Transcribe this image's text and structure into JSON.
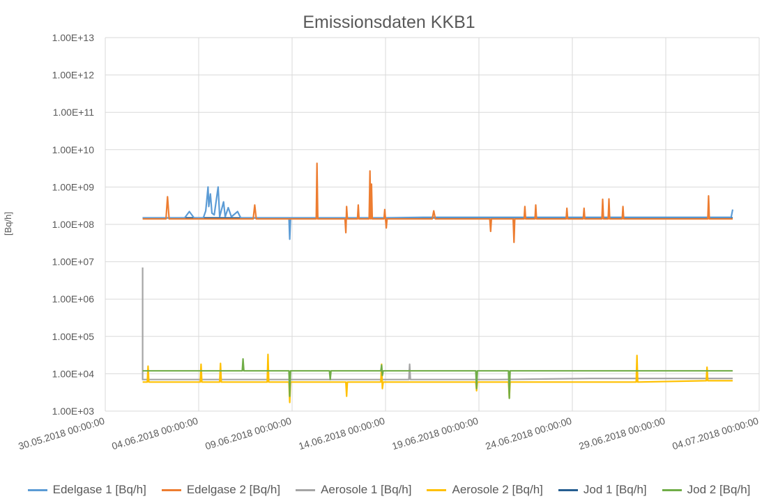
{
  "chart_data": {
    "type": "line",
    "title": "Emissionsdaten KKB1",
    "xlabel": "",
    "ylabel": "[Bq/h]",
    "y_scale": "log",
    "ylim": [
      1000,
      10000000000000
    ],
    "y_ticks": [
      1000,
      10000,
      100000,
      1000000,
      10000000,
      100000000,
      1000000000,
      10000000000,
      100000000000,
      1000000000000,
      10000000000000
    ],
    "y_tick_labels": [
      "1.00E+03",
      "1.00E+04",
      "1.00E+05",
      "1.00E+06",
      "1.00E+07",
      "1.00E+08",
      "1.00E+09",
      "1.00E+10",
      "1.00E+11",
      "1.00E+12",
      "1.00E+13"
    ],
    "xlim": [
      "2018-05-30 00:00",
      "2018-07-04 00:00"
    ],
    "x_ticks": [
      "2018-05-30 00:00",
      "2018-06-04 00:00",
      "2018-06-09 00:00",
      "2018-06-14 00:00",
      "2018-06-19 00:00",
      "2018-06-24 00:00",
      "2018-06-29 00:00",
      "2018-07-04 00:00"
    ],
    "x_tick_labels": [
      "30.05.2018 00:00:00",
      "04.06.2018 00:00:00",
      "09.06.2018 00:00:00",
      "14.06.2018 00:00:00",
      "19.06.2018 00:00:00",
      "24.06.2018 00:00:00",
      "29.06.2018 00:00:00",
      "04.07.2018 00:00:00"
    ],
    "grid": true,
    "legend_position": "bottom",
    "series": [
      {
        "name": "Edelgase 1 [Bq/h]",
        "color": "#5B9BD5",
        "points": [
          [
            "2018-06-01 00:00",
            150000000
          ],
          [
            "2018-06-02 00:00",
            150000000
          ],
          [
            "2018-06-03 06:00",
            150000000
          ],
          [
            "2018-06-03 12:00",
            220000000
          ],
          [
            "2018-06-03 18:00",
            150000000
          ],
          [
            "2018-06-04 06:00",
            150000000
          ],
          [
            "2018-06-04 09:00",
            230000000
          ],
          [
            "2018-06-04 11:00",
            600000000
          ],
          [
            "2018-06-04 12:00",
            1000000000
          ],
          [
            "2018-06-04 13:00",
            300000000
          ],
          [
            "2018-06-04 15:00",
            650000000
          ],
          [
            "2018-06-04 17:00",
            200000000
          ],
          [
            "2018-06-04 20:00",
            180000000
          ],
          [
            "2018-06-05 01:00",
            1000000000
          ],
          [
            "2018-06-05 03:00",
            160000000
          ],
          [
            "2018-06-05 08:00",
            400000000
          ],
          [
            "2018-06-05 10:00",
            160000000
          ],
          [
            "2018-06-05 14:00",
            280000000
          ],
          [
            "2018-06-05 18:00",
            160000000
          ],
          [
            "2018-06-06 02:00",
            220000000
          ],
          [
            "2018-06-06 06:00",
            150000000
          ],
          [
            "2018-06-07 00:00",
            150000000
          ],
          [
            "2018-06-08 00:00",
            150000000
          ],
          [
            "2018-06-08 20:00",
            150000000
          ],
          [
            "2018-06-08 21:00",
            40000000
          ],
          [
            "2018-06-08 22:00",
            150000000
          ],
          [
            "2018-06-10 00:00",
            150000000
          ],
          [
            "2018-06-11 00:00",
            150000000
          ],
          [
            "2018-06-12 00:00",
            150000000
          ],
          [
            "2018-06-14 00:00",
            150000000
          ],
          [
            "2018-06-16 00:00",
            155000000
          ],
          [
            "2018-06-18 00:00",
            155000000
          ],
          [
            "2018-06-20 00:00",
            155000000
          ],
          [
            "2018-06-22 00:00",
            155000000
          ],
          [
            "2018-06-24 00:00",
            155000000
          ],
          [
            "2018-06-26 00:00",
            155000000
          ],
          [
            "2018-06-28 00:00",
            155000000
          ],
          [
            "2018-06-30 00:00",
            155000000
          ],
          [
            "2018-07-02 00:00",
            155000000
          ],
          [
            "2018-07-02 12:00",
            155000000
          ],
          [
            "2018-07-02 14:00",
            250000000
          ]
        ]
      },
      {
        "name": "Edelgase 2 [Bq/h]",
        "color": "#ED7D31",
        "points": [
          [
            "2018-06-01 00:00",
            140000000
          ],
          [
            "2018-06-02 06:00",
            140000000
          ],
          [
            "2018-06-02 08:00",
            550000000
          ],
          [
            "2018-06-02 10:00",
            140000000
          ],
          [
            "2018-06-05 00:00",
            140000000
          ],
          [
            "2018-06-06 22:00",
            140000000
          ],
          [
            "2018-06-07 00:00",
            330000000
          ],
          [
            "2018-06-07 02:00",
            140000000
          ],
          [
            "2018-06-10 07:00",
            140000000
          ],
          [
            "2018-06-10 08:00",
            4300000000
          ],
          [
            "2018-06-10 09:00",
            140000000
          ],
          [
            "2018-06-11 20:00",
            140000000
          ],
          [
            "2018-06-11 21:00",
            60000000
          ],
          [
            "2018-06-11 22:00",
            300000000
          ],
          [
            "2018-06-11 23:00",
            140000000
          ],
          [
            "2018-06-12 12:00",
            140000000
          ],
          [
            "2018-06-12 13:00",
            330000000
          ],
          [
            "2018-06-12 14:00",
            140000000
          ],
          [
            "2018-06-13 03:00",
            140000000
          ],
          [
            "2018-06-13 04:00",
            2700000000
          ],
          [
            "2018-06-13 05:00",
            140000000
          ],
          [
            "2018-06-13 06:00",
            1200000000
          ],
          [
            "2018-06-13 07:00",
            140000000
          ],
          [
            "2018-06-13 22:00",
            140000000
          ],
          [
            "2018-06-13 23:00",
            250000000
          ],
          [
            "2018-06-14 01:00",
            80000000
          ],
          [
            "2018-06-14 02:00",
            140000000
          ],
          [
            "2018-06-16 12:00",
            140000000
          ],
          [
            "2018-06-16 14:00",
            230000000
          ],
          [
            "2018-06-16 16:00",
            140000000
          ],
          [
            "2018-06-19 14:00",
            140000000
          ],
          [
            "2018-06-19 15:00",
            65000000
          ],
          [
            "2018-06-19 16:00",
            140000000
          ],
          [
            "2018-06-20 20:00",
            140000000
          ],
          [
            "2018-06-20 21:00",
            33000000
          ],
          [
            "2018-06-20 22:00",
            140000000
          ],
          [
            "2018-06-21 10:00",
            140000000
          ],
          [
            "2018-06-21 11:00",
            300000000
          ],
          [
            "2018-06-21 12:00",
            140000000
          ],
          [
            "2018-06-22 00:00",
            140000000
          ],
          [
            "2018-06-22 01:00",
            330000000
          ],
          [
            "2018-06-22 02:00",
            140000000
          ],
          [
            "2018-06-23 16:00",
            140000000
          ],
          [
            "2018-06-23 17:00",
            270000000
          ],
          [
            "2018-06-23 18:00",
            140000000
          ],
          [
            "2018-06-24 14:00",
            140000000
          ],
          [
            "2018-06-24 15:00",
            270000000
          ],
          [
            "2018-06-24 16:00",
            140000000
          ],
          [
            "2018-06-25 14:00",
            140000000
          ],
          [
            "2018-06-25 15:00",
            470000000
          ],
          [
            "2018-06-25 16:00",
            140000000
          ],
          [
            "2018-06-25 22:00",
            140000000
          ],
          [
            "2018-06-25 23:00",
            480000000
          ],
          [
            "2018-06-26 00:00",
            140000000
          ],
          [
            "2018-06-26 16:00",
            140000000
          ],
          [
            "2018-06-26 17:00",
            300000000
          ],
          [
            "2018-06-26 18:00",
            140000000
          ],
          [
            "2018-07-01 06:00",
            140000000
          ],
          [
            "2018-07-01 07:00",
            580000000
          ],
          [
            "2018-07-01 08:00",
            140000000
          ],
          [
            "2018-07-02 14:00",
            140000000
          ]
        ]
      },
      {
        "name": "Aerosole 1 [Bq/h]",
        "color": "#A5A5A5",
        "points": [
          [
            "2018-06-01 00:00",
            7000000
          ],
          [
            "2018-06-01 00:00",
            7000
          ],
          [
            "2018-06-04 00:00",
            7000
          ],
          [
            "2018-06-09 00:00",
            7000
          ],
          [
            "2018-06-15 06:00",
            7000
          ],
          [
            "2018-06-15 07:00",
            18000
          ],
          [
            "2018-06-15 08:00",
            7000
          ],
          [
            "2018-06-20 00:00",
            7000
          ],
          [
            "2018-06-25 00:00",
            7500
          ],
          [
            "2018-06-30 00:00",
            7500
          ],
          [
            "2018-07-02 14:00",
            7500
          ]
        ]
      },
      {
        "name": "Aerosole 2 [Bq/h]",
        "color": "#FFC000",
        "points": [
          [
            "2018-06-01 00:00",
            6000
          ],
          [
            "2018-06-01 06:00",
            6000
          ],
          [
            "2018-06-01 07:00",
            16000
          ],
          [
            "2018-06-01 08:00",
            6000
          ],
          [
            "2018-06-04 02:00",
            6000
          ],
          [
            "2018-06-04 03:00",
            18000
          ],
          [
            "2018-06-04 04:00",
            6000
          ],
          [
            "2018-06-05 03:00",
            6000
          ],
          [
            "2018-06-05 04:00",
            19000
          ],
          [
            "2018-06-05 05:00",
            6000
          ],
          [
            "2018-06-07 16:00",
            6000
          ],
          [
            "2018-06-07 17:00",
            33000
          ],
          [
            "2018-06-07 18:00",
            6000
          ],
          [
            "2018-06-08 20:00",
            6000
          ],
          [
            "2018-06-08 21:00",
            1700
          ],
          [
            "2018-06-08 22:00",
            6000
          ],
          [
            "2018-06-11 21:00",
            6000
          ],
          [
            "2018-06-11 22:00",
            2500
          ],
          [
            "2018-06-11 23:00",
            6000
          ],
          [
            "2018-06-13 18:00",
            6000
          ],
          [
            "2018-06-13 19:00",
            18000
          ],
          [
            "2018-06-13 20:00",
            4000
          ],
          [
            "2018-06-13 21:00",
            6000
          ],
          [
            "2018-06-18 20:00",
            6000
          ],
          [
            "2018-06-18 21:00",
            3500
          ],
          [
            "2018-06-18 22:00",
            6000
          ],
          [
            "2018-06-20 14:00",
            6000
          ],
          [
            "2018-06-20 15:00",
            2200
          ],
          [
            "2018-06-20 16:00",
            6000
          ],
          [
            "2018-06-27 10:00",
            6000
          ],
          [
            "2018-06-27 11:00",
            31000
          ],
          [
            "2018-06-27 12:00",
            6000
          ],
          [
            "2018-07-01 04:00",
            6500
          ],
          [
            "2018-07-01 05:00",
            15000
          ],
          [
            "2018-07-01 06:00",
            6500
          ],
          [
            "2018-07-02 14:00",
            6500
          ]
        ]
      },
      {
        "name": "Jod 1 [Bq/h]",
        "color": "#255E91",
        "points": [
          [
            "2018-06-01 00:00",
            150000000
          ],
          [
            "2018-06-10 00:00",
            148000000
          ],
          [
            "2018-06-20 00:00",
            152000000
          ],
          [
            "2018-07-02 14:00",
            150000000
          ]
        ]
      },
      {
        "name": "Jod 2 [Bq/h]",
        "color": "#70AD47",
        "points": [
          [
            "2018-06-01 00:00",
            12000
          ],
          [
            "2018-06-06 08:00",
            12000
          ],
          [
            "2018-06-06 09:00",
            25000
          ],
          [
            "2018-06-06 10:00",
            12000
          ],
          [
            "2018-06-08 20:00",
            12000
          ],
          [
            "2018-06-08 21:00",
            2500
          ],
          [
            "2018-06-08 22:00",
            12000
          ],
          [
            "2018-06-11 00:00",
            12000
          ],
          [
            "2018-06-11 01:00",
            7000
          ],
          [
            "2018-06-11 02:00",
            12000
          ],
          [
            "2018-06-13 18:00",
            12000
          ],
          [
            "2018-06-13 19:00",
            17000
          ],
          [
            "2018-06-13 20:00",
            9000
          ],
          [
            "2018-06-13 21:00",
            12000
          ],
          [
            "2018-06-18 20:00",
            12000
          ],
          [
            "2018-06-18 21:00",
            4000
          ],
          [
            "2018-06-18 22:00",
            12000
          ],
          [
            "2018-06-20 14:00",
            12000
          ],
          [
            "2018-06-20 15:00",
            2200
          ],
          [
            "2018-06-20 16:00",
            12000
          ],
          [
            "2018-06-25 00:00",
            12000
          ],
          [
            "2018-07-02 14:00",
            12000
          ]
        ]
      }
    ]
  }
}
